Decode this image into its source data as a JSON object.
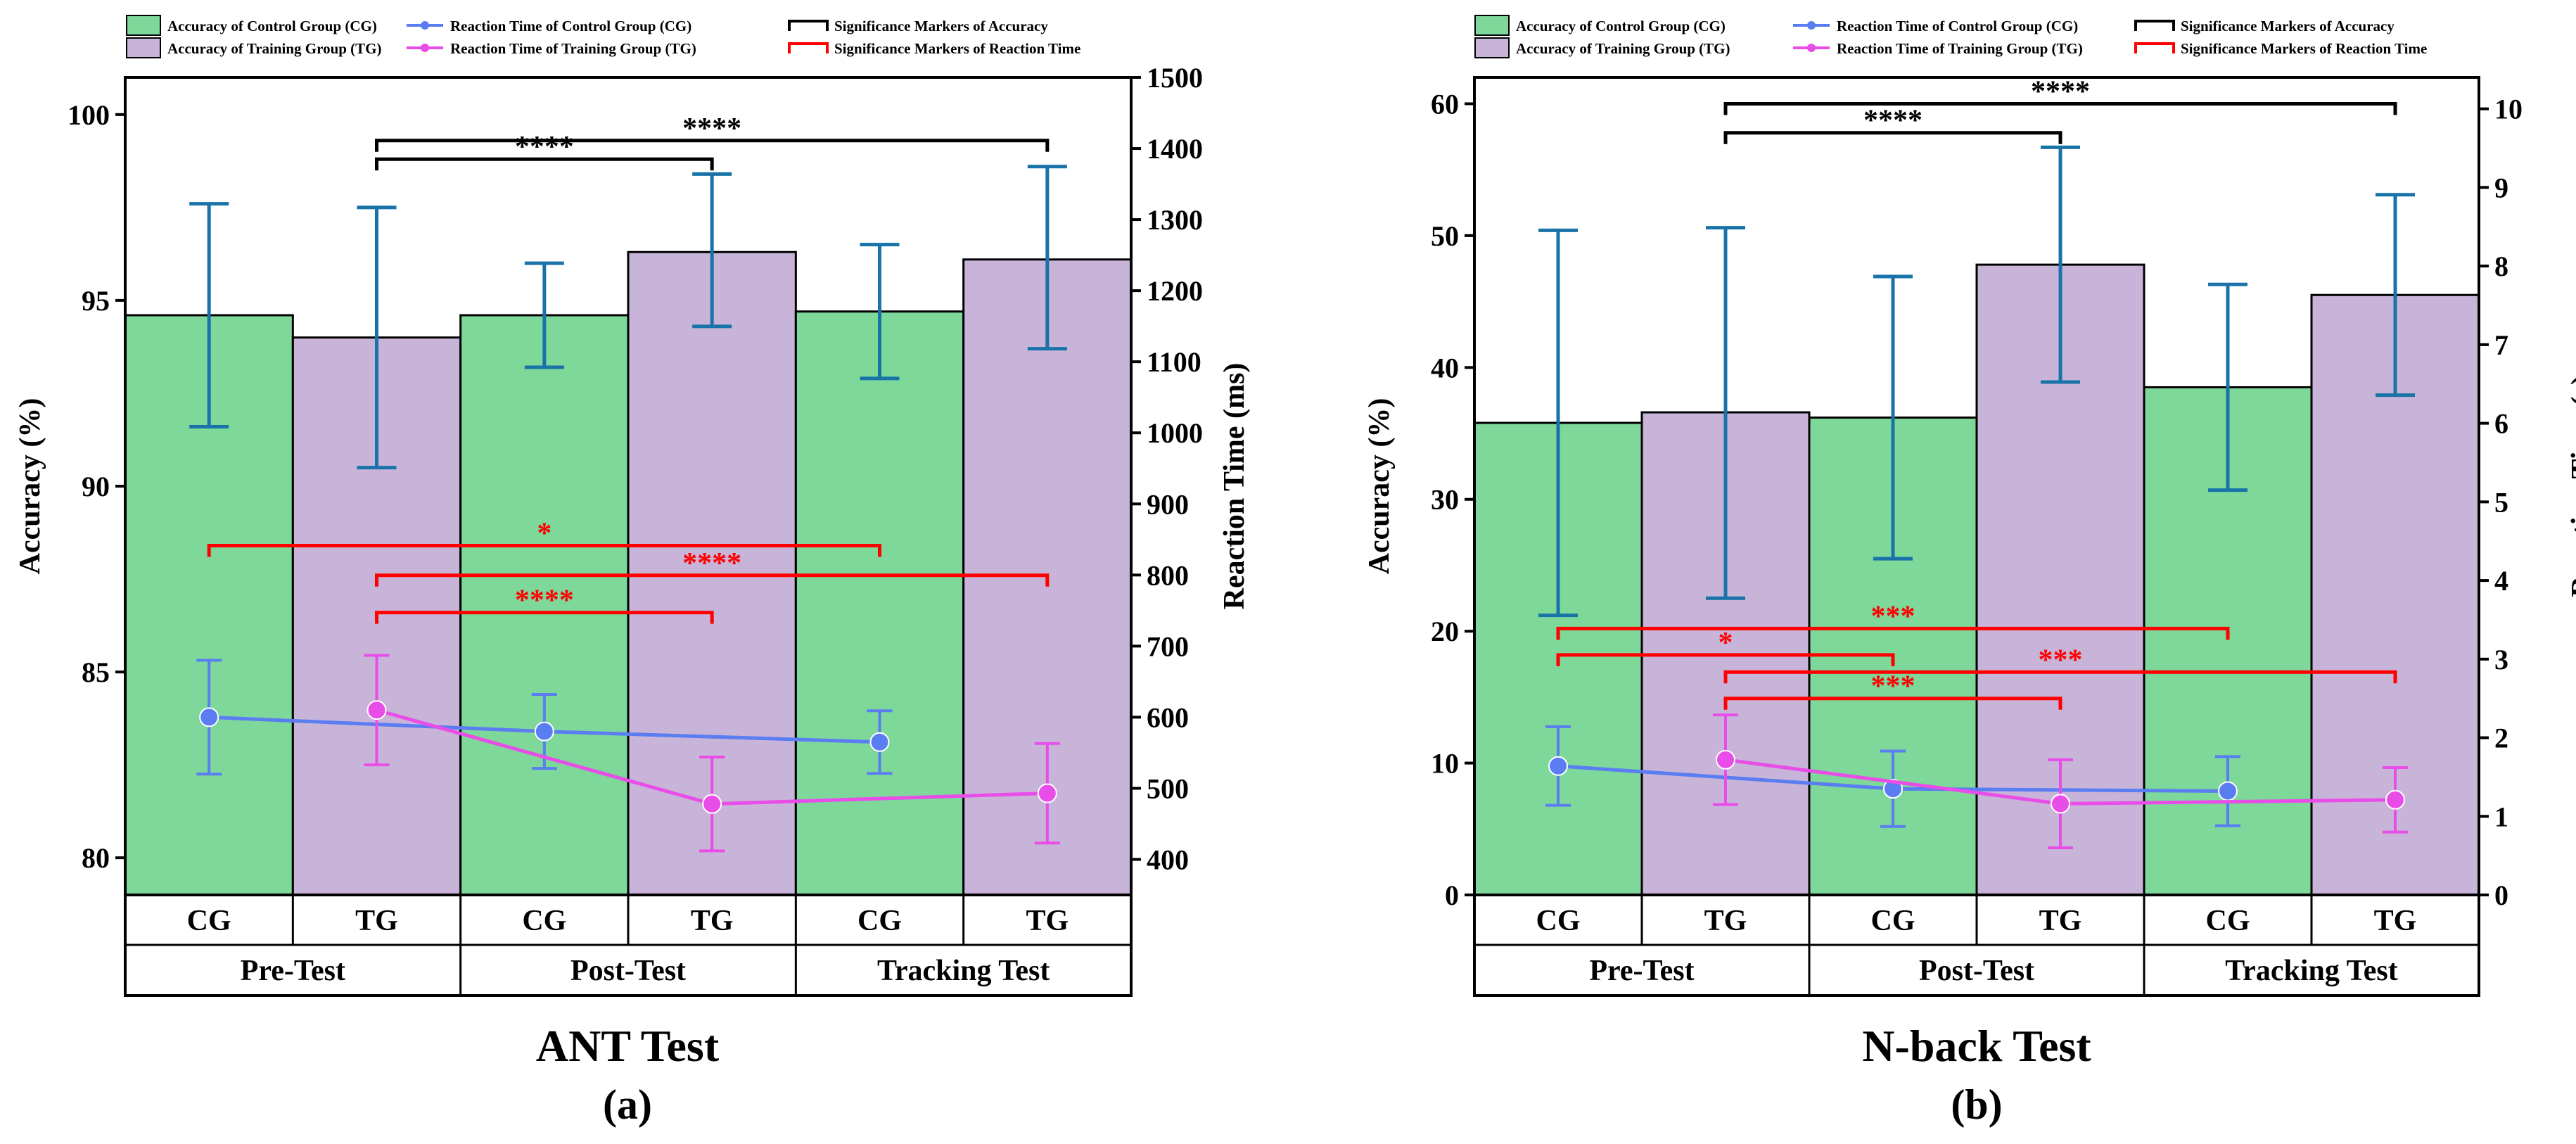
{
  "legend": {
    "acc_cg": "Accuracy of Control Group (CG)",
    "acc_tg": "Accuracy  of Training Group (TG)",
    "rt_cg": "Reaction Time of Control Group (CG)",
    "rt_tg": "Reaction Time of Training Group (TG)",
    "sig_acc": "Significance Markers of Accuracy",
    "sig_rt": "Significance Markers of Reaction Time"
  },
  "colors": {
    "cg_fill": "#7dd89a",
    "tg_fill": "#c8b4d8",
    "error_bar": "#1a73a8",
    "rt_cg_line": "#5a7df2",
    "rt_tg_line": "#e84de8",
    "sig_acc": "#000000",
    "sig_rt": "#ff0000"
  },
  "chart_data": [
    {
      "type": "bar",
      "title": "ANT Test",
      "label": "(a)",
      "ylabel": "Accuracy  (%)",
      "y2label": "Reaction Time  (ms)",
      "ylim": [
        79,
        101
      ],
      "yticks": [
        80,
        85,
        90,
        95,
        100
      ],
      "y2lim": [
        350,
        1500
      ],
      "y2ticks": [
        400,
        500,
        600,
        700,
        800,
        900,
        1000,
        1100,
        1200,
        1300,
        1400,
        1500
      ],
      "groups": [
        "CG",
        "TG",
        "CG",
        "TG",
        "CG",
        "TG"
      ],
      "phases": [
        "Pre-Test",
        "Post-Test",
        "Tracking Test"
      ],
      "accuracy": {
        "values": [
          94.6,
          94.0,
          94.6,
          96.3,
          94.7,
          96.1
        ],
        "err_low": [
          91.6,
          90.5,
          93.2,
          94.3,
          92.9,
          93.7
        ],
        "err_high": [
          97.6,
          97.5,
          96.0,
          98.4,
          96.5,
          98.6
        ]
      },
      "rt_series": [
        {
          "name": "Reaction Time of Control Group (CG)",
          "bar_index": [
            0,
            2,
            4
          ],
          "values": [
            600,
            580,
            565
          ],
          "err": [
            80,
            52,
            44
          ]
        },
        {
          "name": "Reaction Time of Training Group (TG)",
          "bar_index": [
            1,
            3,
            5
          ],
          "values": [
            610,
            478,
            493
          ],
          "err": [
            77,
            66,
            70
          ]
        }
      ],
      "sig_acc": [
        {
          "from": 1,
          "to": 5,
          "label": "****",
          "level": 99.3
        },
        {
          "from": 1,
          "to": 3,
          "label": "****",
          "level": 98.8
        }
      ],
      "sig_rt": [
        {
          "from": 0,
          "to": 4,
          "label": "*",
          "level": 88.4
        },
        {
          "from": 1,
          "to": 5,
          "label": "****",
          "level": 87.6
        },
        {
          "from": 1,
          "to": 3,
          "label": "****",
          "level": 86.6
        }
      ]
    },
    {
      "type": "bar",
      "title": "N-back Test",
      "label": "(b)",
      "ylabel": "Accuracy  (%)",
      "y2label": "Reaction Time  (s)",
      "ylim": [
        0,
        62
      ],
      "yticks": [
        0,
        10,
        20,
        30,
        40,
        50,
        60
      ],
      "y2lim": [
        0,
        10.4
      ],
      "y2ticks": [
        0,
        1,
        2,
        3,
        4,
        5,
        6,
        7,
        8,
        9,
        10
      ],
      "groups": [
        "CG",
        "TG",
        "CG",
        "TG",
        "CG",
        "TG"
      ],
      "phases": [
        "Pre-Test",
        "Post-Test",
        "Tracking Test"
      ],
      "accuracy": {
        "values": [
          35.8,
          36.6,
          36.2,
          47.8,
          38.5,
          45.5
        ],
        "err_low": [
          21.2,
          22.5,
          25.5,
          38.9,
          30.7,
          37.9
        ],
        "err_high": [
          50.4,
          50.6,
          46.9,
          56.7,
          46.3,
          53.1
        ]
      },
      "rt_series": [
        {
          "name": "Reaction Time of Control Group (CG)",
          "bar_index": [
            0,
            2,
            4
          ],
          "values": [
            1.64,
            1.35,
            1.32
          ],
          "err": [
            0.5,
            0.48,
            0.44
          ]
        },
        {
          "name": "Reaction Time of Training Group (TG)",
          "bar_index": [
            1,
            3,
            5
          ],
          "values": [
            1.72,
            1.16,
            1.21
          ],
          "err": [
            0.57,
            0.56,
            0.41
          ]
        }
      ],
      "sig_acc": [
        {
          "from": 1,
          "to": 5,
          "label": "****",
          "level": 60.0
        },
        {
          "from": 1,
          "to": 3,
          "label": "****",
          "level": 57.8
        }
      ],
      "sig_rt": [
        {
          "from": 0,
          "to": 4,
          "label": "***",
          "level": 20.2
        },
        {
          "from": 0,
          "to": 2,
          "label": "*",
          "level": 18.2
        },
        {
          "from": 1,
          "to": 5,
          "label": "***",
          "level": 16.9
        },
        {
          "from": 1,
          "to": 3,
          "label": "***",
          "level": 14.9
        }
      ]
    }
  ]
}
